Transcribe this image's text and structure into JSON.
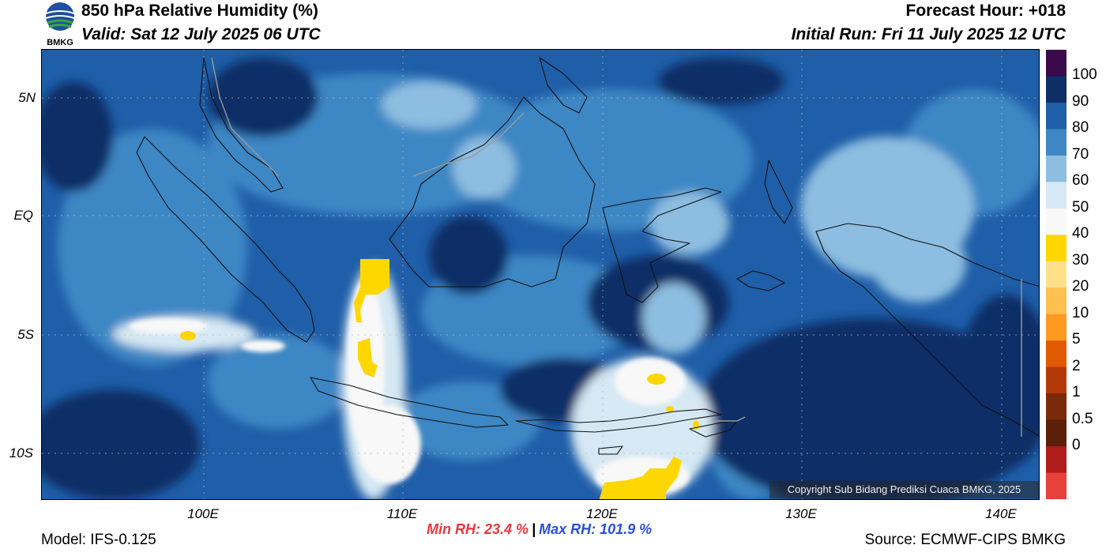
{
  "header": {
    "title": "850 hPa Relative Humidity (%)",
    "valid": "Valid: Sat 12 July 2025 06 UTC",
    "forecast_hour": "Forecast Hour: +018",
    "initial_run": "Initial Run: Fri 11 July 2025 12 UTC",
    "logo_text": "BMKG"
  },
  "map": {
    "lat_labels": [
      "5N",
      "EQ",
      "5S",
      "10S"
    ],
    "lon_labels": [
      "100E",
      "110E",
      "120E",
      "130E",
      "140E"
    ],
    "copyright": "Copyright Sub Bidang Prediksi Cuaca BMKG, 2025"
  },
  "colorbar": {
    "labels": [
      "100",
      "90",
      "80",
      "70",
      "60",
      "50",
      "40",
      "30",
      "20",
      "10",
      "5",
      "2",
      "1",
      "0.5",
      "0"
    ],
    "colors": [
      "#3b0a4a",
      "#0d2f66",
      "#1f5ea8",
      "#3e87c4",
      "#8dbde0",
      "#d6e8f3",
      "#f8f8f8",
      "#ffd700",
      "#ffe08a",
      "#ffc050",
      "#ff9a20",
      "#e25a00",
      "#b23a08",
      "#7a2a0a",
      "#5c1f0a",
      "#b01c1c",
      "#e8403a"
    ]
  },
  "footer": {
    "model": "Model: IFS-0.125",
    "min_rh": "Min RH:  23.4 %",
    "separator": "|",
    "max_rh": "Max RH: 101.9 %",
    "source": "Source: ECMWF-CIPS BMKG"
  }
}
